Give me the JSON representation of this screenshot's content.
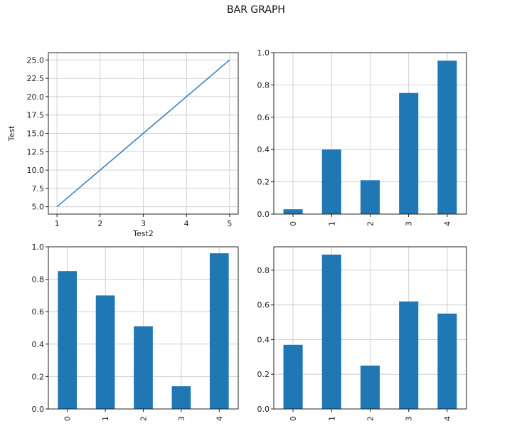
{
  "figure": {
    "title": "BAR GRAPH"
  },
  "chart_data": [
    {
      "type": "line",
      "x": [
        1,
        2,
        3,
        4,
        5
      ],
      "y": [
        5,
        10,
        15,
        20,
        25
      ],
      "xlabel": "Test2",
      "ylabel": "Test",
      "xlim": [
        0.8,
        5.2
      ],
      "ylim": [
        4.0,
        26.0
      ],
      "xticks": [
        1,
        2,
        3,
        4,
        5
      ],
      "yticks": [
        5.0,
        7.5,
        10.0,
        12.5,
        15.0,
        17.5,
        20.0,
        22.5,
        25.0
      ],
      "xtick_labels": [
        "1",
        "2",
        "3",
        "4",
        "5"
      ],
      "ytick_labels": [
        "5.0",
        "7.5",
        "10.0",
        "12.5",
        "15.0",
        "17.5",
        "20.0",
        "22.5",
        "25.0"
      ],
      "grid": true,
      "color": "#3b82c4"
    },
    {
      "type": "bar",
      "categories": [
        "0",
        "1",
        "2",
        "3",
        "4"
      ],
      "values": [
        0.03,
        0.4,
        0.21,
        0.75,
        0.95
      ],
      "ylim": [
        0.0,
        1.0
      ],
      "yticks": [
        0.0,
        0.2,
        0.4,
        0.6,
        0.8,
        1.0
      ],
      "ytick_labels": [
        "0.0",
        "0.2",
        "0.4",
        "0.6",
        "0.8",
        "1.0"
      ],
      "grid": true,
      "color": "#1f77b4"
    },
    {
      "type": "bar",
      "categories": [
        "0",
        "1",
        "2",
        "3",
        "4"
      ],
      "values": [
        0.85,
        0.7,
        0.51,
        0.14,
        0.96
      ],
      "ylim": [
        0.0,
        1.0
      ],
      "yticks": [
        0.0,
        0.2,
        0.4,
        0.6,
        0.8,
        1.0
      ],
      "ytick_labels": [
        "0.0",
        "0.2",
        "0.4",
        "0.6",
        "0.8",
        "1.0"
      ],
      "grid": true,
      "color": "#1f77b4"
    },
    {
      "type": "bar",
      "categories": [
        "0",
        "1",
        "2",
        "3",
        "4"
      ],
      "values": [
        0.37,
        0.89,
        0.25,
        0.62,
        0.55
      ],
      "ylim": [
        0.0,
        0.935
      ],
      "yticks": [
        0.0,
        0.2,
        0.4,
        0.6,
        0.8
      ],
      "ytick_labels": [
        "0.0",
        "0.2",
        "0.4",
        "0.6",
        "0.8"
      ],
      "grid": true,
      "color": "#1f77b4"
    }
  ]
}
